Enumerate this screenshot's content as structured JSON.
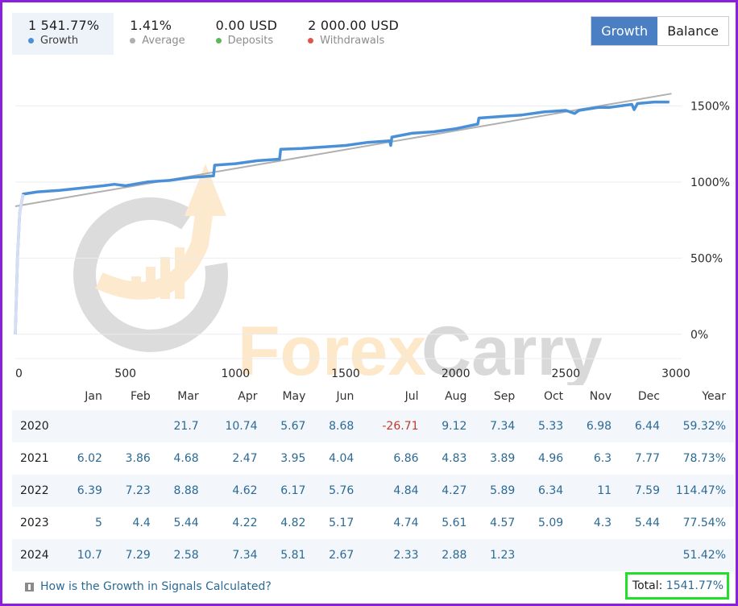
{
  "stats": [
    {
      "value": "1 541.77%",
      "label": "Growth",
      "color": "#4a90d9",
      "active": true
    },
    {
      "value": "1.41%",
      "label": "Average",
      "color": "#b0b0b0",
      "active": false
    },
    {
      "value": "0.00 USD",
      "label": "Deposits",
      "color": "#5cb85c",
      "active": false
    },
    {
      "value": "2 000.00 USD",
      "label": "Withdrawals",
      "color": "#e0554b",
      "active": false
    }
  ],
  "toggle": {
    "growth_label": "Growth",
    "balance_label": "Balance",
    "selected": "Growth"
  },
  "watermark": {
    "text": "ForexCarry"
  },
  "chart_data": {
    "type": "line",
    "title": "",
    "xlabel": "",
    "ylabel": "",
    "x_ticks": [
      "0",
      "500",
      "1000",
      "1500",
      "2000",
      "2500",
      "3000"
    ],
    "y_ticks": [
      "0%",
      "500%",
      "1000%",
      "1500%"
    ],
    "xlim": [
      0,
      3000
    ],
    "ylim": [
      -160,
      1650
    ],
    "grid": true,
    "series": [
      {
        "color": "#4a90d9",
        "points": [
          [
            0,
            0
          ],
          [
            10,
            500
          ],
          [
            20,
            800
          ],
          [
            35,
            920
          ],
          [
            100,
            935
          ],
          [
            200,
            945
          ],
          [
            300,
            960
          ],
          [
            400,
            975
          ],
          [
            450,
            985
          ],
          [
            500,
            975
          ],
          [
            600,
            1000
          ],
          [
            700,
            1010
          ],
          [
            800,
            1030
          ],
          [
            900,
            1040
          ],
          [
            905,
            1110
          ],
          [
            1000,
            1120
          ],
          [
            1100,
            1140
          ],
          [
            1200,
            1150
          ],
          [
            1205,
            1215
          ],
          [
            1300,
            1220
          ],
          [
            1400,
            1230
          ],
          [
            1500,
            1240
          ],
          [
            1600,
            1260
          ],
          [
            1700,
            1270
          ],
          [
            1705,
            1240
          ],
          [
            1710,
            1295
          ],
          [
            1800,
            1320
          ],
          [
            1900,
            1330
          ],
          [
            2000,
            1350
          ],
          [
            2100,
            1380
          ],
          [
            2105,
            1420
          ],
          [
            2200,
            1430
          ],
          [
            2300,
            1440
          ],
          [
            2400,
            1460
          ],
          [
            2500,
            1470
          ],
          [
            2540,
            1450
          ],
          [
            2560,
            1470
          ],
          [
            2650,
            1490
          ],
          [
            2700,
            1490
          ],
          [
            2800,
            1510
          ],
          [
            2810,
            1475
          ],
          [
            2825,
            1515
          ],
          [
            2900,
            1525
          ],
          [
            2970,
            1525
          ]
        ]
      },
      {
        "color": "#b0b0b0",
        "points": [
          [
            0,
            840
          ],
          [
            2980,
            1580
          ]
        ]
      }
    ]
  },
  "table": {
    "headers": [
      "Jan",
      "Feb",
      "Mar",
      "Apr",
      "May",
      "Jun",
      "Jul",
      "Aug",
      "Sep",
      "Oct",
      "Nov",
      "Dec",
      "Year"
    ],
    "rows": [
      {
        "year": "2020",
        "months": [
          "",
          "",
          "21.7",
          "10.74",
          "5.67",
          "8.68",
          "-26.71",
          "9.12",
          "7.34",
          "5.33",
          "6.98",
          "6.44"
        ],
        "total": "59.32%"
      },
      {
        "year": "2021",
        "months": [
          "6.02",
          "3.86",
          "4.68",
          "2.47",
          "3.95",
          "4.04",
          "6.86",
          "4.83",
          "3.89",
          "4.96",
          "6.3",
          "7.77"
        ],
        "total": "78.73%"
      },
      {
        "year": "2022",
        "months": [
          "6.39",
          "7.23",
          "8.88",
          "4.62",
          "6.17",
          "5.76",
          "4.84",
          "4.27",
          "5.89",
          "6.34",
          "11",
          "7.59"
        ],
        "total": "114.47%"
      },
      {
        "year": "2023",
        "months": [
          "5",
          "4.4",
          "5.44",
          "4.22",
          "4.82",
          "5.17",
          "4.74",
          "5.61",
          "4.57",
          "5.09",
          "4.3",
          "5.44"
        ],
        "total": "77.54%"
      },
      {
        "year": "2024",
        "months": [
          "10.7",
          "7.29",
          "2.58",
          "7.34",
          "5.81",
          "2.67",
          "2.33",
          "2.88",
          "1.23",
          "",
          "",
          ""
        ],
        "total": "51.42%"
      }
    ]
  },
  "footer": {
    "link_text": "How is the Growth in Signals Calculated?",
    "total_label": "Total:",
    "total_value": "1541.77%"
  }
}
